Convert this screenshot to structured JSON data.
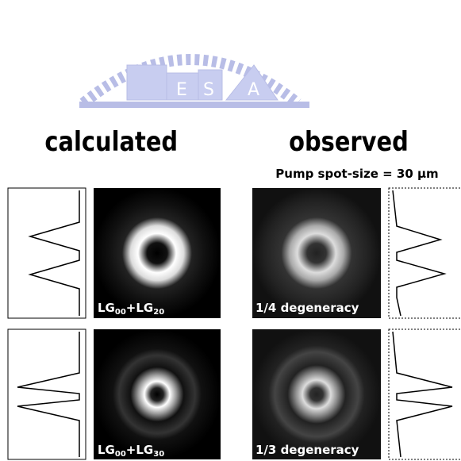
{
  "logo": {
    "letters": [
      "E",
      "S",
      "A"
    ]
  },
  "headings": {
    "calculated": "calculated",
    "observed": "observed",
    "pump": "Pump spot-size = 30 μm"
  },
  "rows": [
    {
      "calculated_label": [
        "LG",
        "00",
        "+LG",
        "20"
      ],
      "observed_label": "1/4 degeneracy"
    },
    {
      "calculated_label": [
        "LG",
        "00",
        "+LG",
        "30"
      ],
      "observed_label": "1/3 degeneracy"
    }
  ]
}
